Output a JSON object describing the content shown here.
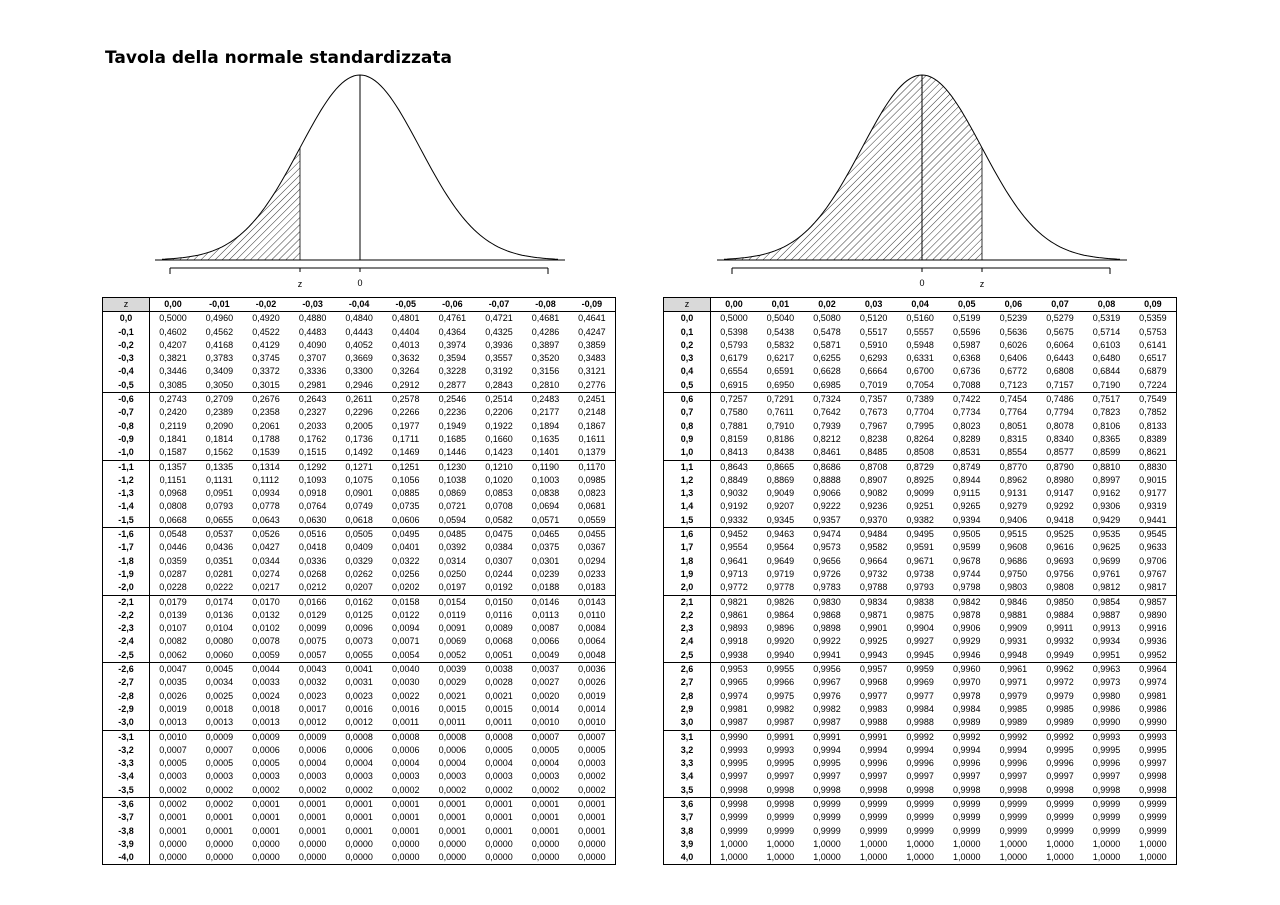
{
  "title": "Tavola della normale standardizzata",
  "curves": {
    "left": {
      "z_label": "z",
      "zero_label": "0",
      "z_value": -1,
      "shaded": "left-tail"
    },
    "right": {
      "z_label": "z",
      "zero_label": "0",
      "z_value": 1,
      "shaded": "cumulative"
    }
  },
  "left_table": {
    "corner": "z",
    "columns": [
      "0,00",
      "-0,01",
      "-0,02",
      "-0,03",
      "-0,04",
      "-0,05",
      "-0,06",
      "-0,07",
      "-0,08",
      "-0,09"
    ],
    "rows": [
      [
        "0,0",
        "0,5000",
        "0,4960",
        "0,4920",
        "0,4880",
        "0,4840",
        "0,4801",
        "0,4761",
        "0,4721",
        "0,4681",
        "0,4641"
      ],
      [
        "-0,1",
        "0,4602",
        "0,4562",
        "0,4522",
        "0,4483",
        "0,4443",
        "0,4404",
        "0,4364",
        "0,4325",
        "0,4286",
        "0,4247"
      ],
      [
        "-0,2",
        "0,4207",
        "0,4168",
        "0,4129",
        "0,4090",
        "0,4052",
        "0,4013",
        "0,3974",
        "0,3936",
        "0,3897",
        "0,3859"
      ],
      [
        "-0,3",
        "0,3821",
        "0,3783",
        "0,3745",
        "0,3707",
        "0,3669",
        "0,3632",
        "0,3594",
        "0,3557",
        "0,3520",
        "0,3483"
      ],
      [
        "-0,4",
        "0,3446",
        "0,3409",
        "0,3372",
        "0,3336",
        "0,3300",
        "0,3264",
        "0,3228",
        "0,3192",
        "0,3156",
        "0,3121"
      ],
      [
        "-0,5",
        "0,3085",
        "0,3050",
        "0,3015",
        "0,2981",
        "0,2946",
        "0,2912",
        "0,2877",
        "0,2843",
        "0,2810",
        "0,2776"
      ],
      [
        "-0,6",
        "0,2743",
        "0,2709",
        "0,2676",
        "0,2643",
        "0,2611",
        "0,2578",
        "0,2546",
        "0,2514",
        "0,2483",
        "0,2451"
      ],
      [
        "-0,7",
        "0,2420",
        "0,2389",
        "0,2358",
        "0,2327",
        "0,2296",
        "0,2266",
        "0,2236",
        "0,2206",
        "0,2177",
        "0,2148"
      ],
      [
        "-0,8",
        "0,2119",
        "0,2090",
        "0,2061",
        "0,2033",
        "0,2005",
        "0,1977",
        "0,1949",
        "0,1922",
        "0,1894",
        "0,1867"
      ],
      [
        "-0,9",
        "0,1841",
        "0,1814",
        "0,1788",
        "0,1762",
        "0,1736",
        "0,1711",
        "0,1685",
        "0,1660",
        "0,1635",
        "0,1611"
      ],
      [
        "-1,0",
        "0,1587",
        "0,1562",
        "0,1539",
        "0,1515",
        "0,1492",
        "0,1469",
        "0,1446",
        "0,1423",
        "0,1401",
        "0,1379"
      ],
      [
        "-1,1",
        "0,1357",
        "0,1335",
        "0,1314",
        "0,1292",
        "0,1271",
        "0,1251",
        "0,1230",
        "0,1210",
        "0,1190",
        "0,1170"
      ],
      [
        "-1,2",
        "0,1151",
        "0,1131",
        "0,1112",
        "0,1093",
        "0,1075",
        "0,1056",
        "0,1038",
        "0,1020",
        "0,1003",
        "0,0985"
      ],
      [
        "-1,3",
        "0,0968",
        "0,0951",
        "0,0934",
        "0,0918",
        "0,0901",
        "0,0885",
        "0,0869",
        "0,0853",
        "0,0838",
        "0,0823"
      ],
      [
        "-1,4",
        "0,0808",
        "0,0793",
        "0,0778",
        "0,0764",
        "0,0749",
        "0,0735",
        "0,0721",
        "0,0708",
        "0,0694",
        "0,0681"
      ],
      [
        "-1,5",
        "0,0668",
        "0,0655",
        "0,0643",
        "0,0630",
        "0,0618",
        "0,0606",
        "0,0594",
        "0,0582",
        "0,0571",
        "0,0559"
      ],
      [
        "-1,6",
        "0,0548",
        "0,0537",
        "0,0526",
        "0,0516",
        "0,0505",
        "0,0495",
        "0,0485",
        "0,0475",
        "0,0465",
        "0,0455"
      ],
      [
        "-1,7",
        "0,0446",
        "0,0436",
        "0,0427",
        "0,0418",
        "0,0409",
        "0,0401",
        "0,0392",
        "0,0384",
        "0,0375",
        "0,0367"
      ],
      [
        "-1,8",
        "0,0359",
        "0,0351",
        "0,0344",
        "0,0336",
        "0,0329",
        "0,0322",
        "0,0314",
        "0,0307",
        "0,0301",
        "0,0294"
      ],
      [
        "-1,9",
        "0,0287",
        "0,0281",
        "0,0274",
        "0,0268",
        "0,0262",
        "0,0256",
        "0,0250",
        "0,0244",
        "0,0239",
        "0,0233"
      ],
      [
        "-2,0",
        "0,0228",
        "0,0222",
        "0,0217",
        "0,0212",
        "0,0207",
        "0,0202",
        "0,0197",
        "0,0192",
        "0,0188",
        "0,0183"
      ],
      [
        "-2,1",
        "0,0179",
        "0,0174",
        "0,0170",
        "0,0166",
        "0,0162",
        "0,0158",
        "0,0154",
        "0,0150",
        "0,0146",
        "0,0143"
      ],
      [
        "-2,2",
        "0,0139",
        "0,0136",
        "0,0132",
        "0,0129",
        "0,0125",
        "0,0122",
        "0,0119",
        "0,0116",
        "0,0113",
        "0,0110"
      ],
      [
        "-2,3",
        "0,0107",
        "0,0104",
        "0,0102",
        "0,0099",
        "0,0096",
        "0,0094",
        "0,0091",
        "0,0089",
        "0,0087",
        "0,0084"
      ],
      [
        "-2,4",
        "0,0082",
        "0,0080",
        "0,0078",
        "0,0075",
        "0,0073",
        "0,0071",
        "0,0069",
        "0,0068",
        "0,0066",
        "0,0064"
      ],
      [
        "-2,5",
        "0,0062",
        "0,0060",
        "0,0059",
        "0,0057",
        "0,0055",
        "0,0054",
        "0,0052",
        "0,0051",
        "0,0049",
        "0,0048"
      ],
      [
        "-2,6",
        "0,0047",
        "0,0045",
        "0,0044",
        "0,0043",
        "0,0041",
        "0,0040",
        "0,0039",
        "0,0038",
        "0,0037",
        "0,0036"
      ],
      [
        "-2,7",
        "0,0035",
        "0,0034",
        "0,0033",
        "0,0032",
        "0,0031",
        "0,0030",
        "0,0029",
        "0,0028",
        "0,0027",
        "0,0026"
      ],
      [
        "-2,8",
        "0,0026",
        "0,0025",
        "0,0024",
        "0,0023",
        "0,0023",
        "0,0022",
        "0,0021",
        "0,0021",
        "0,0020",
        "0,0019"
      ],
      [
        "-2,9",
        "0,0019",
        "0,0018",
        "0,0018",
        "0,0017",
        "0,0016",
        "0,0016",
        "0,0015",
        "0,0015",
        "0,0014",
        "0,0014"
      ],
      [
        "-3,0",
        "0,0013",
        "0,0013",
        "0,0013",
        "0,0012",
        "0,0012",
        "0,0011",
        "0,0011",
        "0,0011",
        "0,0010",
        "0,0010"
      ],
      [
        "-3,1",
        "0,0010",
        "0,0009",
        "0,0009",
        "0,0009",
        "0,0008",
        "0,0008",
        "0,0008",
        "0,0008",
        "0,0007",
        "0,0007"
      ],
      [
        "-3,2",
        "0,0007",
        "0,0007",
        "0,0006",
        "0,0006",
        "0,0006",
        "0,0006",
        "0,0006",
        "0,0005",
        "0,0005",
        "0,0005"
      ],
      [
        "-3,3",
        "0,0005",
        "0,0005",
        "0,0005",
        "0,0004",
        "0,0004",
        "0,0004",
        "0,0004",
        "0,0004",
        "0,0004",
        "0,0003"
      ],
      [
        "-3,4",
        "0,0003",
        "0,0003",
        "0,0003",
        "0,0003",
        "0,0003",
        "0,0003",
        "0,0003",
        "0,0003",
        "0,0003",
        "0,0002"
      ],
      [
        "-3,5",
        "0,0002",
        "0,0002",
        "0,0002",
        "0,0002",
        "0,0002",
        "0,0002",
        "0,0002",
        "0,0002",
        "0,0002",
        "0,0002"
      ],
      [
        "-3,6",
        "0,0002",
        "0,0002",
        "0,0001",
        "0,0001",
        "0,0001",
        "0,0001",
        "0,0001",
        "0,0001",
        "0,0001",
        "0,0001"
      ],
      [
        "-3,7",
        "0,0001",
        "0,0001",
        "0,0001",
        "0,0001",
        "0,0001",
        "0,0001",
        "0,0001",
        "0,0001",
        "0,0001",
        "0,0001"
      ],
      [
        "-3,8",
        "0,0001",
        "0,0001",
        "0,0001",
        "0,0001",
        "0,0001",
        "0,0001",
        "0,0001",
        "0,0001",
        "0,0001",
        "0,0001"
      ],
      [
        "-3,9",
        "0,0000",
        "0,0000",
        "0,0000",
        "0,0000",
        "0,0000",
        "0,0000",
        "0,0000",
        "0,0000",
        "0,0000",
        "0,0000"
      ],
      [
        "-4,0",
        "0,0000",
        "0,0000",
        "0,0000",
        "0,0000",
        "0,0000",
        "0,0000",
        "0,0000",
        "0,0000",
        "0,0000",
        "0,0000"
      ]
    ]
  },
  "right_table": {
    "corner": "z",
    "columns": [
      "0,00",
      "0,01",
      "0,02",
      "0,03",
      "0,04",
      "0,05",
      "0,06",
      "0,07",
      "0,08",
      "0,09"
    ],
    "rows": [
      [
        "0,0",
        "0,5000",
        "0,5040",
        "0,5080",
        "0,5120",
        "0,5160",
        "0,5199",
        "0,5239",
        "0,5279",
        "0,5319",
        "0,5359"
      ],
      [
        "0,1",
        "0,5398",
        "0,5438",
        "0,5478",
        "0,5517",
        "0,5557",
        "0,5596",
        "0,5636",
        "0,5675",
        "0,5714",
        "0,5753"
      ],
      [
        "0,2",
        "0,5793",
        "0,5832",
        "0,5871",
        "0,5910",
        "0,5948",
        "0,5987",
        "0,6026",
        "0,6064",
        "0,6103",
        "0,6141"
      ],
      [
        "0,3",
        "0,6179",
        "0,6217",
        "0,6255",
        "0,6293",
        "0,6331",
        "0,6368",
        "0,6406",
        "0,6443",
        "0,6480",
        "0,6517"
      ],
      [
        "0,4",
        "0,6554",
        "0,6591",
        "0,6628",
        "0,6664",
        "0,6700",
        "0,6736",
        "0,6772",
        "0,6808",
        "0,6844",
        "0,6879"
      ],
      [
        "0,5",
        "0,6915",
        "0,6950",
        "0,6985",
        "0,7019",
        "0,7054",
        "0,7088",
        "0,7123",
        "0,7157",
        "0,7190",
        "0,7224"
      ],
      [
        "0,6",
        "0,7257",
        "0,7291",
        "0,7324",
        "0,7357",
        "0,7389",
        "0,7422",
        "0,7454",
        "0,7486",
        "0,7517",
        "0,7549"
      ],
      [
        "0,7",
        "0,7580",
        "0,7611",
        "0,7642",
        "0,7673",
        "0,7704",
        "0,7734",
        "0,7764",
        "0,7794",
        "0,7823",
        "0,7852"
      ],
      [
        "0,8",
        "0,7881",
        "0,7910",
        "0,7939",
        "0,7967",
        "0,7995",
        "0,8023",
        "0,8051",
        "0,8078",
        "0,8106",
        "0,8133"
      ],
      [
        "0,9",
        "0,8159",
        "0,8186",
        "0,8212",
        "0,8238",
        "0,8264",
        "0,8289",
        "0,8315",
        "0,8340",
        "0,8365",
        "0,8389"
      ],
      [
        "1,0",
        "0,8413",
        "0,8438",
        "0,8461",
        "0,8485",
        "0,8508",
        "0,8531",
        "0,8554",
        "0,8577",
        "0,8599",
        "0,8621"
      ],
      [
        "1,1",
        "0,8643",
        "0,8665",
        "0,8686",
        "0,8708",
        "0,8729",
        "0,8749",
        "0,8770",
        "0,8790",
        "0,8810",
        "0,8830"
      ],
      [
        "1,2",
        "0,8849",
        "0,8869",
        "0,8888",
        "0,8907",
        "0,8925",
        "0,8944",
        "0,8962",
        "0,8980",
        "0,8997",
        "0,9015"
      ],
      [
        "1,3",
        "0,9032",
        "0,9049",
        "0,9066",
        "0,9082",
        "0,9099",
        "0,9115",
        "0,9131",
        "0,9147",
        "0,9162",
        "0,9177"
      ],
      [
        "1,4",
        "0,9192",
        "0,9207",
        "0,9222",
        "0,9236",
        "0,9251",
        "0,9265",
        "0,9279",
        "0,9292",
        "0,9306",
        "0,9319"
      ],
      [
        "1,5",
        "0,9332",
        "0,9345",
        "0,9357",
        "0,9370",
        "0,9382",
        "0,9394",
        "0,9406",
        "0,9418",
        "0,9429",
        "0,9441"
      ],
      [
        "1,6",
        "0,9452",
        "0,9463",
        "0,9474",
        "0,9484",
        "0,9495",
        "0,9505",
        "0,9515",
        "0,9525",
        "0,9535",
        "0,9545"
      ],
      [
        "1,7",
        "0,9554",
        "0,9564",
        "0,9573",
        "0,9582",
        "0,9591",
        "0,9599",
        "0,9608",
        "0,9616",
        "0,9625",
        "0,9633"
      ],
      [
        "1,8",
        "0,9641",
        "0,9649",
        "0,9656",
        "0,9664",
        "0,9671",
        "0,9678",
        "0,9686",
        "0,9693",
        "0,9699",
        "0,9706"
      ],
      [
        "1,9",
        "0,9713",
        "0,9719",
        "0,9726",
        "0,9732",
        "0,9738",
        "0,9744",
        "0,9750",
        "0,9756",
        "0,9761",
        "0,9767"
      ],
      [
        "2,0",
        "0,9772",
        "0,9778",
        "0,9783",
        "0,9788",
        "0,9793",
        "0,9798",
        "0,9803",
        "0,9808",
        "0,9812",
        "0,9817"
      ],
      [
        "2,1",
        "0,9821",
        "0,9826",
        "0,9830",
        "0,9834",
        "0,9838",
        "0,9842",
        "0,9846",
        "0,9850",
        "0,9854",
        "0,9857"
      ],
      [
        "2,2",
        "0,9861",
        "0,9864",
        "0,9868",
        "0,9871",
        "0,9875",
        "0,9878",
        "0,9881",
        "0,9884",
        "0,9887",
        "0,9890"
      ],
      [
        "2,3",
        "0,9893",
        "0,9896",
        "0,9898",
        "0,9901",
        "0,9904",
        "0,9906",
        "0,9909",
        "0,9911",
        "0,9913",
        "0,9916"
      ],
      [
        "2,4",
        "0,9918",
        "0,9920",
        "0,9922",
        "0,9925",
        "0,9927",
        "0,9929",
        "0,9931",
        "0,9932",
        "0,9934",
        "0,9936"
      ],
      [
        "2,5",
        "0,9938",
        "0,9940",
        "0,9941",
        "0,9943",
        "0,9945",
        "0,9946",
        "0,9948",
        "0,9949",
        "0,9951",
        "0,9952"
      ],
      [
        "2,6",
        "0,9953",
        "0,9955",
        "0,9956",
        "0,9957",
        "0,9959",
        "0,9960",
        "0,9961",
        "0,9962",
        "0,9963",
        "0,9964"
      ],
      [
        "2,7",
        "0,9965",
        "0,9966",
        "0,9967",
        "0,9968",
        "0,9969",
        "0,9970",
        "0,9971",
        "0,9972",
        "0,9973",
        "0,9974"
      ],
      [
        "2,8",
        "0,9974",
        "0,9975",
        "0,9976",
        "0,9977",
        "0,9977",
        "0,9978",
        "0,9979",
        "0,9979",
        "0,9980",
        "0,9981"
      ],
      [
        "2,9",
        "0,9981",
        "0,9982",
        "0,9982",
        "0,9983",
        "0,9984",
        "0,9984",
        "0,9985",
        "0,9985",
        "0,9986",
        "0,9986"
      ],
      [
        "3,0",
        "0,9987",
        "0,9987",
        "0,9987",
        "0,9988",
        "0,9988",
        "0,9989",
        "0,9989",
        "0,9989",
        "0,9990",
        "0,9990"
      ],
      [
        "3,1",
        "0,9990",
        "0,9991",
        "0,9991",
        "0,9991",
        "0,9992",
        "0,9992",
        "0,9992",
        "0,9992",
        "0,9993",
        "0,9993"
      ],
      [
        "3,2",
        "0,9993",
        "0,9993",
        "0,9994",
        "0,9994",
        "0,9994",
        "0,9994",
        "0,9994",
        "0,9995",
        "0,9995",
        "0,9995"
      ],
      [
        "3,3",
        "0,9995",
        "0,9995",
        "0,9995",
        "0,9996",
        "0,9996",
        "0,9996",
        "0,9996",
        "0,9996",
        "0,9996",
        "0,9997"
      ],
      [
        "3,4",
        "0,9997",
        "0,9997",
        "0,9997",
        "0,9997",
        "0,9997",
        "0,9997",
        "0,9997",
        "0,9997",
        "0,9997",
        "0,9998"
      ],
      [
        "3,5",
        "0,9998",
        "0,9998",
        "0,9998",
        "0,9998",
        "0,9998",
        "0,9998",
        "0,9998",
        "0,9998",
        "0,9998",
        "0,9998"
      ],
      [
        "3,6",
        "0,9998",
        "0,9998",
        "0,9999",
        "0,9999",
        "0,9999",
        "0,9999",
        "0,9999",
        "0,9999",
        "0,9999",
        "0,9999"
      ],
      [
        "3,7",
        "0,9999",
        "0,9999",
        "0,9999",
        "0,9999",
        "0,9999",
        "0,9999",
        "0,9999",
        "0,9999",
        "0,9999",
        "0,9999"
      ],
      [
        "3,8",
        "0,9999",
        "0,9999",
        "0,9999",
        "0,9999",
        "0,9999",
        "0,9999",
        "0,9999",
        "0,9999",
        "0,9999",
        "0,9999"
      ],
      [
        "3,9",
        "1,0000",
        "1,0000",
        "1,0000",
        "1,0000",
        "1,0000",
        "1,0000",
        "1,0000",
        "1,0000",
        "1,0000",
        "1,0000"
      ],
      [
        "4,0",
        "1,0000",
        "1,0000",
        "1,0000",
        "1,0000",
        "1,0000",
        "1,0000",
        "1,0000",
        "1,0000",
        "1,0000",
        "1,0000"
      ]
    ]
  }
}
